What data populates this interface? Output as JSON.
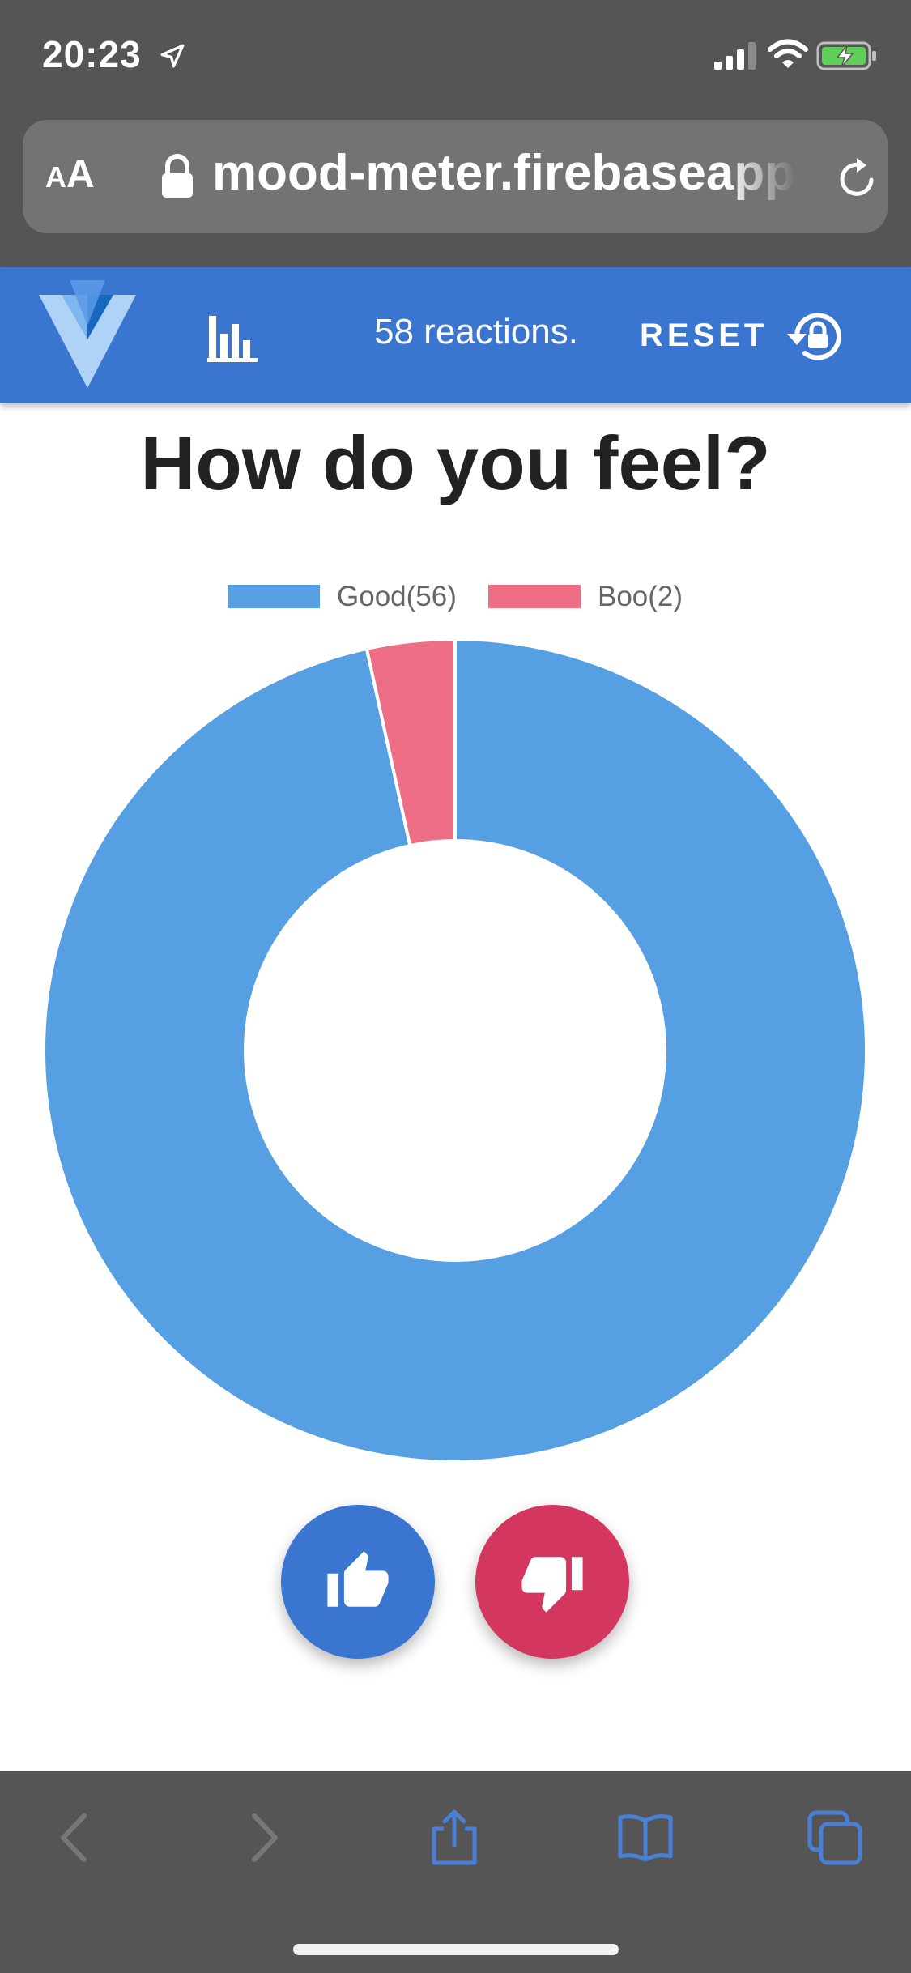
{
  "status_bar": {
    "time": "20:23",
    "battery_charging": true
  },
  "browser": {
    "aa_small": "A",
    "aa_large": "A",
    "url": "mood-meter.firebaseapp"
  },
  "app_bar": {
    "reactions": "58 reactions.",
    "reset_label": "RESET"
  },
  "page": {
    "title": "How do you feel?"
  },
  "chart_data": {
    "type": "pie",
    "variant": "doughnut",
    "labels": [
      "Good(56)",
      "Boo(2)"
    ],
    "values": [
      56,
      2
    ],
    "colors": [
      "#569fe3",
      "#ee6e85"
    ],
    "legend_position": "top"
  },
  "actions": {
    "good_color": "#3a75cf",
    "boo_color": "#d3365f"
  },
  "icons": {
    "logo": "vuetify-logo",
    "chart": "bar-chart-icon",
    "reset": "lock-reset-icon",
    "good": "thumbs-up-icon",
    "boo": "thumbs-down-icon"
  }
}
